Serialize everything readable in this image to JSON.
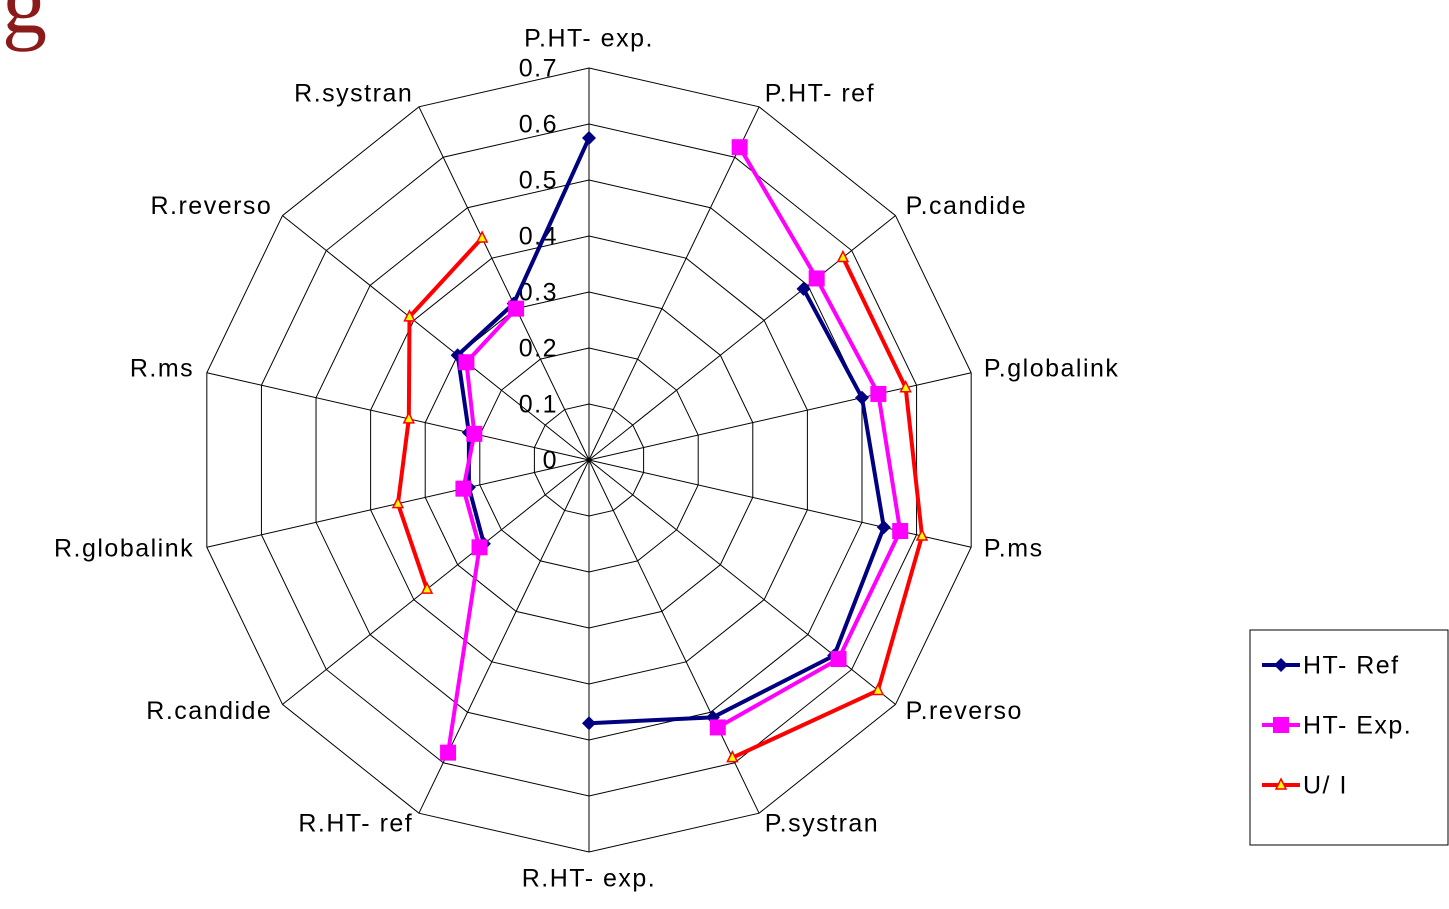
{
  "chart_data": {
    "type": "radar",
    "title": "g",
    "categories": [
      "P.HT- exp.",
      "P.HT- ref",
      "P.candide",
      "P.globalink",
      "P.ms",
      "P.reverso",
      "P.systran",
      "R.HT- exp.",
      "R.HT- ref",
      "R.candide",
      "R.globalink",
      "R.ms",
      "R.reverso",
      "R.systran"
    ],
    "ylim": [
      0,
      0.7
    ],
    "yticks": [
      0,
      0.1,
      0.2,
      0.3,
      0.4,
      0.5,
      0.6,
      0.7
    ],
    "grid": true,
    "legend": "right",
    "series": [
      {
        "name": "HT- Ref",
        "color": "#000080",
        "marker": "diamond",
        "values": [
          0.575,
          null,
          0.49,
          0.5,
          0.54,
          0.56,
          0.51,
          0.47,
          null,
          0.24,
          0.22,
          0.22,
          0.3,
          0.31
        ]
      },
      {
        "name": "HT- Exp.",
        "color": "#ff00ff",
        "marker": "square",
        "values": [
          null,
          0.62,
          0.52,
          0.53,
          0.57,
          0.57,
          0.53,
          null,
          0.58,
          0.25,
          0.23,
          0.21,
          0.28,
          0.3
        ]
      },
      {
        "name": "U/ I",
        "color": "#ff0000",
        "marker": "triangle",
        "values": [
          null,
          null,
          0.58,
          0.58,
          0.61,
          0.66,
          0.59,
          null,
          null,
          0.37,
          0.35,
          0.33,
          0.41,
          0.44
        ]
      }
    ]
  }
}
